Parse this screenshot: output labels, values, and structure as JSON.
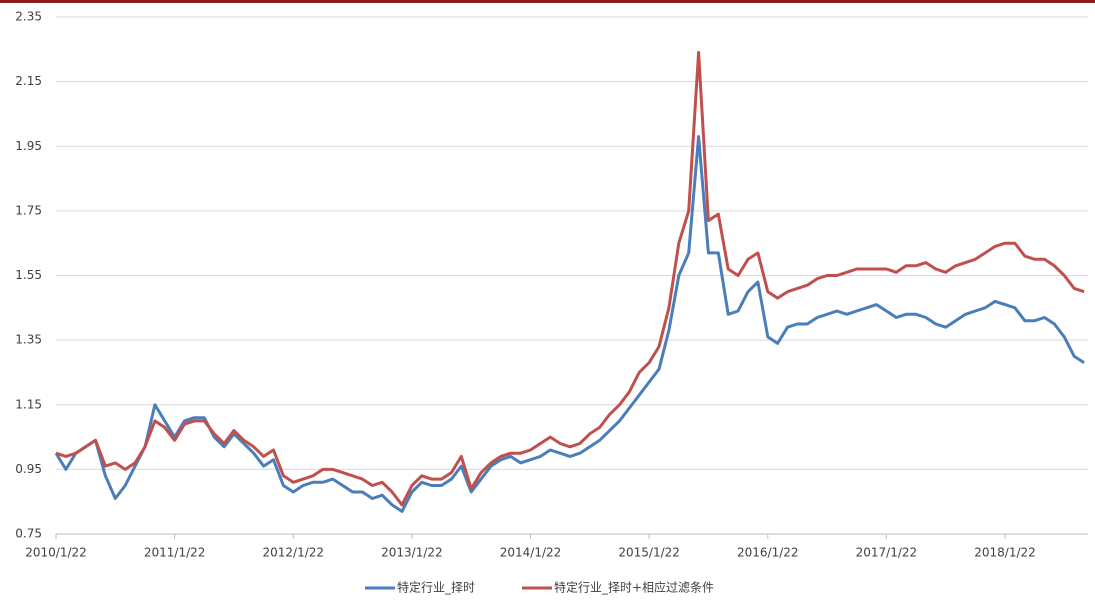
{
  "chart_data": {
    "type": "line",
    "categories": [
      "2010/1/22",
      null,
      null,
      null,
      null,
      null,
      null,
      null,
      null,
      null,
      null,
      null,
      "2011/1/22",
      null,
      null,
      null,
      null,
      null,
      null,
      null,
      null,
      null,
      null,
      null,
      "2012/1/22",
      null,
      null,
      null,
      null,
      null,
      null,
      null,
      null,
      null,
      null,
      null,
      "2013/1/22",
      null,
      null,
      null,
      null,
      null,
      null,
      null,
      null,
      null,
      null,
      null,
      "2014/1/22",
      null,
      null,
      null,
      null,
      null,
      null,
      null,
      null,
      null,
      null,
      null,
      "2015/1/22",
      null,
      null,
      null,
      null,
      null,
      null,
      null,
      null,
      null,
      null,
      null,
      "2016/1/22",
      null,
      null,
      null,
      null,
      null,
      null,
      null,
      null,
      null,
      null,
      null,
      "2017/1/22",
      null,
      null,
      null,
      null,
      null,
      null,
      null,
      null,
      null,
      null,
      null,
      "2018/1/22",
      null,
      null,
      null,
      null,
      null,
      null,
      null,
      null
    ],
    "series": [
      {
        "name": "特定行业_择时",
        "color": "#4a7ebb",
        "values": [
          1.0,
          0.95,
          1.0,
          1.02,
          1.04,
          0.93,
          0.86,
          0.9,
          0.96,
          1.02,
          1.15,
          1.1,
          1.05,
          1.1,
          1.11,
          1.11,
          1.05,
          1.02,
          1.06,
          1.03,
          1.0,
          0.96,
          0.98,
          0.9,
          0.88,
          0.9,
          0.91,
          0.91,
          0.92,
          0.9,
          0.88,
          0.88,
          0.86,
          0.87,
          0.84,
          0.82,
          0.88,
          0.91,
          0.9,
          0.9,
          0.92,
          0.96,
          0.88,
          0.92,
          0.96,
          0.98,
          0.99,
          0.97,
          0.98,
          0.99,
          1.01,
          1.0,
          0.99,
          1.0,
          1.02,
          1.04,
          1.07,
          1.1,
          1.14,
          1.18,
          1.22,
          1.26,
          1.38,
          1.55,
          1.62,
          1.98,
          1.62,
          1.62,
          1.43,
          1.44,
          1.5,
          1.53,
          1.36,
          1.34,
          1.39,
          1.4,
          1.4,
          1.42,
          1.43,
          1.44,
          1.43,
          1.44,
          1.45,
          1.46,
          1.44,
          1.42,
          1.43,
          1.43,
          1.42,
          1.4,
          1.39,
          1.41,
          1.43,
          1.44,
          1.45,
          1.47,
          1.46,
          1.45,
          1.41,
          1.41,
          1.42,
          1.4,
          1.36,
          1.3,
          1.28
        ]
      },
      {
        "name": "特定行业_择时+相应过滤条件",
        "color": "#c0504d",
        "values": [
          1.0,
          0.99,
          1.0,
          1.02,
          1.04,
          0.96,
          0.97,
          0.95,
          0.97,
          1.02,
          1.1,
          1.08,
          1.04,
          1.09,
          1.1,
          1.1,
          1.06,
          1.03,
          1.07,
          1.04,
          1.02,
          0.99,
          1.01,
          0.93,
          0.91,
          0.92,
          0.93,
          0.95,
          0.95,
          0.94,
          0.93,
          0.92,
          0.9,
          0.91,
          0.88,
          0.84,
          0.9,
          0.93,
          0.92,
          0.92,
          0.94,
          0.99,
          0.89,
          0.94,
          0.97,
          0.99,
          1.0,
          1.0,
          1.01,
          1.03,
          1.05,
          1.03,
          1.02,
          1.03,
          1.06,
          1.08,
          1.12,
          1.15,
          1.19,
          1.25,
          1.28,
          1.33,
          1.45,
          1.65,
          1.75,
          2.24,
          1.72,
          1.74,
          1.57,
          1.55,
          1.6,
          1.62,
          1.5,
          1.48,
          1.5,
          1.51,
          1.52,
          1.54,
          1.55,
          1.55,
          1.56,
          1.57,
          1.57,
          1.57,
          1.57,
          1.56,
          1.58,
          1.58,
          1.59,
          1.57,
          1.56,
          1.58,
          1.59,
          1.6,
          1.62,
          1.64,
          1.65,
          1.65,
          1.61,
          1.6,
          1.6,
          1.58,
          1.55,
          1.51,
          1.5
        ]
      }
    ],
    "ylim": [
      0.75,
      2.35
    ],
    "yticks": [
      0.75,
      0.95,
      1.15,
      1.35,
      1.55,
      1.75,
      1.95,
      2.15,
      2.35
    ],
    "grid": true,
    "legend": "bottom"
  }
}
